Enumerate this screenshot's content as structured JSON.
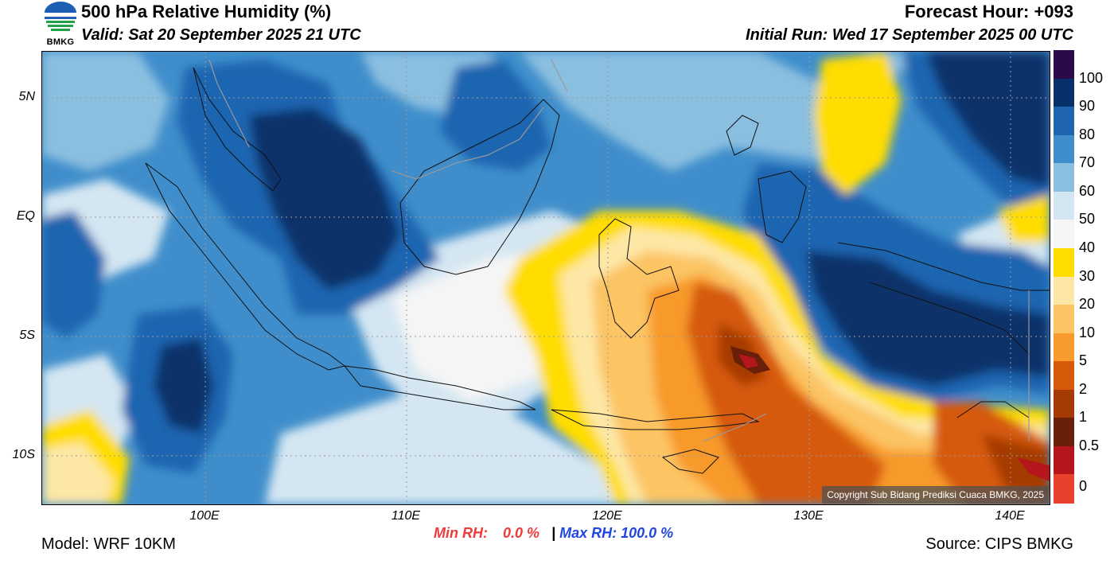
{
  "header": {
    "title": "500 hPa Relative Humidity (%)",
    "valid": "Valid: Sat 20 September 2025 21 UTC",
    "forecast_hour": "Forecast Hour: +093",
    "initial_run": "Initial Run: Wed 17 September 2025 00 UTC",
    "logo_text": "BMKG"
  },
  "map": {
    "lat_labels": [
      "5N",
      "EQ",
      "5S",
      "10S"
    ],
    "lon_labels": [
      "100E",
      "110E",
      "120E",
      "130E",
      "140E"
    ],
    "copyright": "Copyright Sub Bidang Prediksi Cuaca BMKG, 2025"
  },
  "colorbar": {
    "labels": [
      "100",
      "90",
      "80",
      "70",
      "60",
      "50",
      "40",
      "30",
      "20",
      "10",
      "5",
      "2",
      "1",
      "0.5",
      "0"
    ],
    "colors": [
      "#2b0a4a",
      "#08306b",
      "#1f65b0",
      "#3f8ecb",
      "#8bbfe0",
      "#d4e6f2",
      "#f5f5f5",
      "#ffdd00",
      "#fde7a6",
      "#fcc463",
      "#f89a2c",
      "#d65a0a",
      "#a63a06",
      "#6a1f08",
      "#b4161b",
      "#e8412d"
    ]
  },
  "stats": {
    "min_label": "Min RH:",
    "min_value": "0.0 %",
    "separator": "|",
    "max_label": "Max RH:",
    "max_value": "100.0 %"
  },
  "footer": {
    "model": "Model: WRF 10KM",
    "source": "Source: CIPS BMKG"
  }
}
